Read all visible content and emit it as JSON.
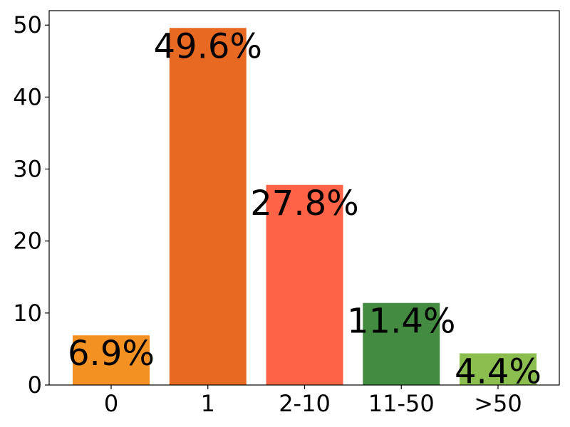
{
  "chart_data": {
    "type": "bar",
    "categories": [
      "0",
      "1",
      "2-10",
      "11-50",
      ">50"
    ],
    "values": [
      6.9,
      49.6,
      27.8,
      11.4,
      4.4
    ],
    "data_labels": [
      "6.9%",
      "49.6%",
      "27.8%",
      "11.4%",
      "4.4%"
    ],
    "colors": [
      "#f39223",
      "#e86a22",
      "#ff6347",
      "#438b40",
      "#8bbd4f"
    ],
    "y_ticks": [
      0,
      10,
      20,
      30,
      40,
      50
    ],
    "ylim": [
      0,
      52
    ],
    "grid": false,
    "legend": false
  }
}
